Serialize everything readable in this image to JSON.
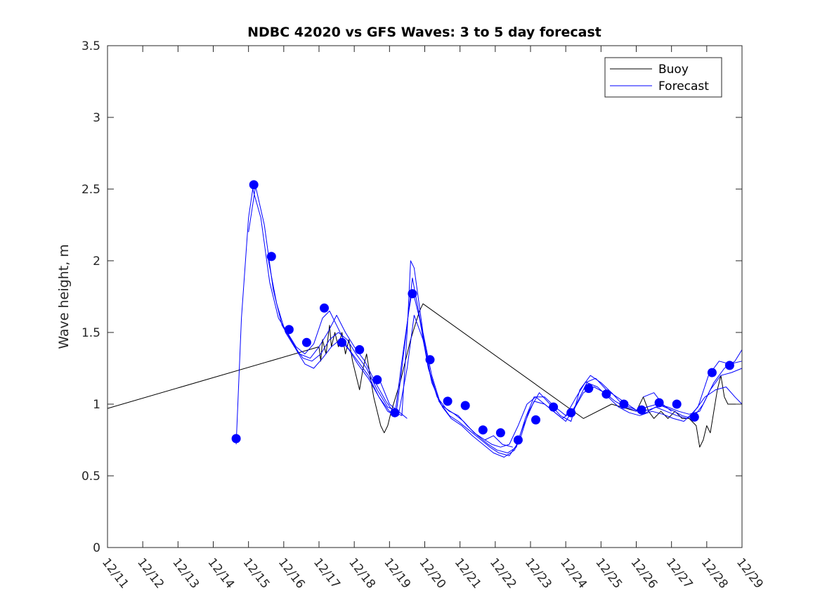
{
  "chart_data": {
    "type": "line",
    "title": "NDBC 42020 vs GFS Waves: 3 to 5 day forecast",
    "xlabel": "",
    "ylabel": "Wave height, m",
    "xlim": [
      0,
      18
    ],
    "ylim": [
      0,
      3.5
    ],
    "x_tick_labels": [
      "12/11",
      "12/12",
      "12/13",
      "12/14",
      "12/15",
      "12/16",
      "12/17",
      "12/18",
      "12/19",
      "12/20",
      "12/21",
      "12/22",
      "12/23",
      "12/24",
      "12/25",
      "12/26",
      "12/27",
      "12/28",
      "12/29"
    ],
    "y_ticks": [
      0,
      0.5,
      1,
      1.5,
      2,
      2.5,
      3,
      3.5
    ],
    "y_tick_labels": [
      "0",
      "0.5",
      "1",
      "1.5",
      "2",
      "2.5",
      "3",
      "3.5"
    ],
    "legend": [
      {
        "label": "Buoy",
        "color": "#000000"
      },
      {
        "label": "Forecast",
        "color": "#0000ff"
      }
    ],
    "legend_position": "top-right",
    "colors": {
      "buoy": "#000000",
      "forecast": "#0000ff"
    },
    "series": [
      {
        "name": "Buoy",
        "points": [
          [
            0,
            0.97
          ],
          [
            6.0,
            1.4
          ],
          [
            6.05,
            1.3
          ],
          [
            6.1,
            1.45
          ],
          [
            6.2,
            1.35
          ],
          [
            6.3,
            1.55
          ],
          [
            6.35,
            1.4
          ],
          [
            6.45,
            1.5
          ],
          [
            6.55,
            1.4
          ],
          [
            6.65,
            1.5
          ],
          [
            6.75,
            1.35
          ],
          [
            6.85,
            1.45
          ],
          [
            6.95,
            1.3
          ],
          [
            7.05,
            1.2
          ],
          [
            7.15,
            1.1
          ],
          [
            7.25,
            1.25
          ],
          [
            7.35,
            1.35
          ],
          [
            7.45,
            1.2
          ],
          [
            7.55,
            1.05
          ],
          [
            7.65,
            0.95
          ],
          [
            7.75,
            0.85
          ],
          [
            7.85,
            0.8
          ],
          [
            7.95,
            0.85
          ],
          [
            8.05,
            0.95
          ],
          [
            8.3,
            1.15
          ],
          [
            8.6,
            1.45
          ],
          [
            8.85,
            1.65
          ],
          [
            8.95,
            1.7
          ],
          [
            13.5,
            0.9
          ],
          [
            14.3,
            1.0
          ],
          [
            15.0,
            0.95
          ],
          [
            15.2,
            1.05
          ],
          [
            15.35,
            0.95
          ],
          [
            15.5,
            0.9
          ],
          [
            15.7,
            0.95
          ],
          [
            15.9,
            0.9
          ],
          [
            16.1,
            0.95
          ],
          [
            16.3,
            0.9
          ],
          [
            16.5,
            0.9
          ],
          [
            16.7,
            0.85
          ],
          [
            16.8,
            0.7
          ],
          [
            16.9,
            0.75
          ],
          [
            17.0,
            0.85
          ],
          [
            17.1,
            0.8
          ],
          [
            17.2,
            0.95
          ],
          [
            17.3,
            1.1
          ],
          [
            17.4,
            1.2
          ],
          [
            17.5,
            1.05
          ],
          [
            17.6,
            1.0
          ],
          [
            17.8,
            1.0
          ],
          [
            18.0,
            1.0
          ]
        ]
      },
      {
        "name": "Forecast run 1",
        "points": [
          [
            3.65,
            0.72
          ],
          [
            3.8,
            1.6
          ],
          [
            4.0,
            2.3
          ],
          [
            4.12,
            2.5
          ],
          [
            4.35,
            2.3
          ],
          [
            4.6,
            1.85
          ],
          [
            4.85,
            1.6
          ],
          [
            5.1,
            1.5
          ],
          [
            5.35,
            1.4
          ],
          [
            5.6,
            1.35
          ],
          [
            5.85,
            1.42
          ],
          [
            6.1,
            1.6
          ],
          [
            6.3,
            1.65
          ],
          [
            6.5,
            1.55
          ],
          [
            6.8,
            1.4
          ],
          [
            7.1,
            1.3
          ],
          [
            7.4,
            1.2
          ],
          [
            7.7,
            1.05
          ],
          [
            7.95,
            0.95
          ],
          [
            8.15,
            0.92
          ],
          [
            8.35,
            1.3
          ],
          [
            8.55,
            1.65
          ],
          [
            8.65,
            1.8
          ],
          [
            8.85,
            1.6
          ],
          [
            9.1,
            1.25
          ],
          [
            9.35,
            1.05
          ],
          [
            9.6,
            0.97
          ],
          [
            9.85,
            0.93
          ],
          [
            10.1,
            0.88
          ],
          [
            10.4,
            0.8
          ],
          [
            10.65,
            0.76
          ],
          [
            10.9,
            0.72
          ],
          [
            11.15,
            0.7
          ],
          [
            11.4,
            0.72
          ],
          [
            11.65,
            0.85
          ],
          [
            11.9,
            1.0
          ],
          [
            12.15,
            1.05
          ],
          [
            12.4,
            1.0
          ],
          [
            12.65,
            0.95
          ],
          [
            12.9,
            0.9
          ],
          [
            13.2,
            0.95
          ],
          [
            13.5,
            1.08
          ],
          [
            13.8,
            1.12
          ],
          [
            14.1,
            1.08
          ],
          [
            14.4,
            1.02
          ],
          [
            14.7,
            0.98
          ],
          [
            15.0,
            0.95
          ],
          [
            15.3,
            0.98
          ],
          [
            15.6,
            1.0
          ],
          [
            15.9,
            0.98
          ],
          [
            16.2,
            0.95
          ],
          [
            16.5,
            0.93
          ],
          [
            16.8,
            0.95
          ],
          [
            17.1,
            1.1
          ],
          [
            17.4,
            1.2
          ],
          [
            17.7,
            1.22
          ],
          [
            18.0,
            1.25
          ]
        ]
      },
      {
        "name": "Forecast run 2",
        "points": [
          [
            4.0,
            2.2
          ],
          [
            4.2,
            2.52
          ],
          [
            4.45,
            2.25
          ],
          [
            4.7,
            1.8
          ],
          [
            4.95,
            1.55
          ],
          [
            5.2,
            1.45
          ],
          [
            5.45,
            1.35
          ],
          [
            5.75,
            1.32
          ],
          [
            6.0,
            1.4
          ],
          [
            6.25,
            1.5
          ],
          [
            6.5,
            1.62
          ],
          [
            6.75,
            1.5
          ],
          [
            7.0,
            1.4
          ],
          [
            7.3,
            1.3
          ],
          [
            7.6,
            1.15
          ],
          [
            7.9,
            1.02
          ],
          [
            8.1,
            0.95
          ],
          [
            8.35,
            0.92
          ],
          [
            8.5,
            1.5
          ],
          [
            8.6,
            2.0
          ],
          [
            8.7,
            1.95
          ],
          [
            8.95,
            1.5
          ],
          [
            9.2,
            1.2
          ],
          [
            9.45,
            1.0
          ],
          [
            9.7,
            0.95
          ],
          [
            9.95,
            0.92
          ],
          [
            10.2,
            0.85
          ],
          [
            10.5,
            0.78
          ],
          [
            10.8,
            0.72
          ],
          [
            11.05,
            0.68
          ],
          [
            11.35,
            0.66
          ],
          [
            11.6,
            0.7
          ],
          [
            11.85,
            0.9
          ],
          [
            12.1,
            1.05
          ],
          [
            12.4,
            1.05
          ],
          [
            12.7,
            0.98
          ],
          [
            13.0,
            0.92
          ],
          [
            13.3,
            1.05
          ],
          [
            13.55,
            1.15
          ],
          [
            13.85,
            1.18
          ],
          [
            14.15,
            1.1
          ],
          [
            14.45,
            1.05
          ],
          [
            14.75,
            1.0
          ],
          [
            15.05,
            0.95
          ],
          [
            15.35,
            0.96
          ],
          [
            15.7,
            0.99
          ],
          [
            16.0,
            0.96
          ],
          [
            16.3,
            0.92
          ],
          [
            16.6,
            0.9
          ],
          [
            16.9,
            1.0
          ],
          [
            17.2,
            1.15
          ],
          [
            17.5,
            1.25
          ],
          [
            17.8,
            1.3
          ],
          [
            18.0,
            1.38
          ]
        ]
      },
      {
        "name": "Forecast run 3",
        "points": [
          [
            4.55,
            2.02
          ],
          [
            4.8,
            1.7
          ],
          [
            5.05,
            1.5
          ],
          [
            5.3,
            1.4
          ],
          [
            5.55,
            1.32
          ],
          [
            5.8,
            1.3
          ],
          [
            6.05,
            1.35
          ],
          [
            6.3,
            1.45
          ],
          [
            6.55,
            1.5
          ],
          [
            6.8,
            1.45
          ],
          [
            7.05,
            1.35
          ],
          [
            7.35,
            1.25
          ],
          [
            7.65,
            1.1
          ],
          [
            7.95,
            0.98
          ],
          [
            8.2,
            0.95
          ],
          [
            8.45,
            1.45
          ],
          [
            8.65,
            1.88
          ],
          [
            8.9,
            1.55
          ],
          [
            9.15,
            1.22
          ],
          [
            9.4,
            1.02
          ],
          [
            9.7,
            0.92
          ],
          [
            9.95,
            0.88
          ],
          [
            10.25,
            0.82
          ],
          [
            10.55,
            0.76
          ],
          [
            10.85,
            0.7
          ],
          [
            11.1,
            0.66
          ],
          [
            11.4,
            0.64
          ],
          [
            11.7,
            0.75
          ],
          [
            11.95,
            0.95
          ],
          [
            12.25,
            1.08
          ],
          [
            12.55,
            1.0
          ],
          [
            12.85,
            0.92
          ],
          [
            13.15,
            0.88
          ],
          [
            13.4,
            1.1
          ],
          [
            13.7,
            1.2
          ],
          [
            14.0,
            1.15
          ],
          [
            14.3,
            1.08
          ],
          [
            14.6,
            1.0
          ],
          [
            14.9,
            0.97
          ],
          [
            15.2,
            0.93
          ],
          [
            15.55,
            0.98
          ],
          [
            15.85,
            0.95
          ],
          [
            16.15,
            0.92
          ],
          [
            16.45,
            0.9
          ],
          [
            16.75,
            0.98
          ],
          [
            17.05,
            1.2
          ],
          [
            17.35,
            1.3
          ],
          [
            17.65,
            1.28
          ],
          [
            18.0,
            1.3
          ]
        ]
      },
      {
        "name": "Forecast run 4",
        "points": [
          [
            5.1,
            1.5
          ],
          [
            5.35,
            1.38
          ],
          [
            5.6,
            1.28
          ],
          [
            5.85,
            1.25
          ],
          [
            6.1,
            1.32
          ],
          [
            6.35,
            1.4
          ],
          [
            6.6,
            1.45
          ],
          [
            6.85,
            1.38
          ],
          [
            7.1,
            1.28
          ],
          [
            7.4,
            1.18
          ],
          [
            7.7,
            1.05
          ],
          [
            8.0,
            0.95
          ],
          [
            8.25,
            0.92
          ],
          [
            8.5,
            1.25
          ],
          [
            8.7,
            1.62
          ],
          [
            8.95,
            1.45
          ],
          [
            9.2,
            1.15
          ],
          [
            9.5,
            0.98
          ],
          [
            9.75,
            0.9
          ],
          [
            10.05,
            0.85
          ],
          [
            10.35,
            0.78
          ],
          [
            10.65,
            0.72
          ],
          [
            10.95,
            0.66
          ],
          [
            11.25,
            0.63
          ],
          [
            11.55,
            0.68
          ],
          [
            11.8,
            0.85
          ],
          [
            12.1,
            1.02
          ],
          [
            12.4,
            1.0
          ],
          [
            12.7,
            0.94
          ],
          [
            13.0,
            0.88
          ],
          [
            13.3,
            1.0
          ],
          [
            13.6,
            1.15
          ],
          [
            13.9,
            1.12
          ],
          [
            14.2,
            1.05
          ],
          [
            14.5,
            0.98
          ],
          [
            14.8,
            0.94
          ],
          [
            15.1,
            0.92
          ],
          [
            15.45,
            0.95
          ],
          [
            15.75,
            0.93
          ],
          [
            16.05,
            0.9
          ],
          [
            16.35,
            0.88
          ],
          [
            16.65,
            0.95
          ],
          [
            16.95,
            1.05
          ],
          [
            17.25,
            1.1
          ],
          [
            17.55,
            1.12
          ],
          [
            17.8,
            1.05
          ],
          [
            18.0,
            1.0
          ]
        ]
      },
      {
        "name": "Forecast run 5",
        "points": [
          [
            7.75,
            1.15
          ],
          [
            8.0,
            1.0
          ],
          [
            8.25,
            0.95
          ],
          [
            8.5,
            0.9
          ]
        ]
      },
      {
        "name": "Forecast run 6",
        "points": [
          [
            10.7,
            0.75
          ],
          [
            10.95,
            0.78
          ],
          [
            11.2,
            0.72
          ],
          [
            11.5,
            0.7
          ]
        ]
      },
      {
        "name": "Forecast run 7",
        "points": [
          [
            15.2,
            1.05
          ],
          [
            15.5,
            1.08
          ],
          [
            15.75,
            1.0
          ],
          [
            16.0,
            0.95
          ]
        ]
      },
      {
        "name": "Forecast markers",
        "points": [
          [
            3.65,
            0.76
          ],
          [
            4.15,
            2.53
          ],
          [
            4.65,
            2.03
          ],
          [
            5.15,
            1.52
          ],
          [
            5.65,
            1.43
          ],
          [
            6.15,
            1.67
          ],
          [
            6.65,
            1.43
          ],
          [
            7.15,
            1.38
          ],
          [
            7.65,
            1.17
          ],
          [
            8.15,
            0.94
          ],
          [
            8.65,
            1.77
          ],
          [
            9.15,
            1.31
          ],
          [
            9.65,
            1.02
          ],
          [
            10.15,
            0.99
          ],
          [
            10.65,
            0.82
          ],
          [
            11.15,
            0.8
          ],
          [
            11.65,
            0.75
          ],
          [
            12.15,
            0.89
          ],
          [
            12.65,
            0.98
          ],
          [
            13.15,
            0.94
          ],
          [
            13.65,
            1.11
          ],
          [
            14.15,
            1.07
          ],
          [
            14.65,
            1.0
          ],
          [
            15.15,
            0.96
          ],
          [
            15.65,
            1.01
          ],
          [
            16.15,
            1.0
          ],
          [
            16.65,
            0.91
          ],
          [
            17.15,
            1.22
          ],
          [
            17.65,
            1.27
          ]
        ]
      }
    ]
  }
}
